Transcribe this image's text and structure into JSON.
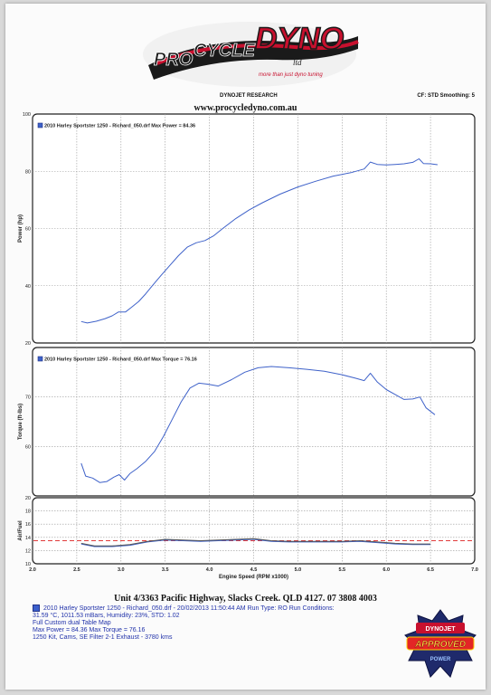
{
  "header": {
    "brand": "DYNOJET RESEARCH",
    "settings": "CF: STD  Smoothing: 5",
    "url": "www.procycledyno.com.au"
  },
  "logo": {
    "text_pro": "PRO",
    "text_cycle": "CYCLE",
    "text_dyno": "DYNO",
    "text_ltd": "ltd",
    "tagline": "more than just dyno tuning"
  },
  "chart_data": [
    {
      "type": "line",
      "title": "2010 Harley Sportster 1250 - Richard_050.drf Max Power = 84.36",
      "ylabel": "Power (hp)",
      "xlabel": "",
      "xlim": [
        2.0,
        7.0
      ],
      "ylim": [
        20,
        100
      ],
      "yticks": [
        20,
        40,
        60,
        80,
        100
      ],
      "xticks": [
        2.0,
        2.5,
        3.0,
        3.5,
        4.0,
        4.5,
        5.0,
        5.5,
        6.0,
        6.5,
        7.0
      ],
      "grid": true,
      "series": [
        {
          "color": "#3f62c9",
          "x": [
            2.55,
            2.62,
            2.72,
            2.82,
            2.9,
            2.97,
            3.05,
            3.12,
            3.2,
            3.28,
            3.36,
            3.45,
            3.55,
            3.65,
            3.75,
            3.85,
            3.95,
            4.05,
            4.15,
            4.3,
            4.45,
            4.6,
            4.8,
            5.0,
            5.2,
            5.4,
            5.6,
            5.75,
            5.82,
            5.9,
            6.0,
            6.1,
            6.2,
            6.3,
            6.37,
            6.42,
            6.5,
            6.58
          ],
          "y": [
            27.5,
            27.0,
            27.6,
            28.5,
            29.5,
            30.8,
            30.8,
            32.5,
            34.5,
            37.2,
            40.2,
            43.5,
            47.0,
            50.5,
            53.5,
            55.0,
            55.8,
            57.5,
            60.0,
            63.5,
            66.5,
            69.0,
            72.0,
            74.5,
            76.5,
            78.3,
            79.5,
            80.8,
            83.2,
            82.4,
            82.2,
            82.4,
            82.6,
            83.1,
            84.36,
            82.7,
            82.6,
            82.3
          ]
        }
      ]
    },
    {
      "type": "line",
      "title": "2010 Harley Sportster 1250 - Richard_050.drf Max Torque = 76.16",
      "ylabel": "Torque (ft-lbs)",
      "xlabel": "",
      "xlim": [
        2.0,
        7.0
      ],
      "ylim": [
        50,
        80
      ],
      "yticks": [
        60,
        70
      ],
      "xticks": [
        2.0,
        2.5,
        3.0,
        3.5,
        4.0,
        4.5,
        5.0,
        5.5,
        6.0,
        6.5,
        7.0
      ],
      "grid": true,
      "series": [
        {
          "color": "#3f62c9",
          "x": [
            2.55,
            2.6,
            2.68,
            2.76,
            2.84,
            2.92,
            2.98,
            3.04,
            3.1,
            3.18,
            3.28,
            3.38,
            3.48,
            3.58,
            3.68,
            3.78,
            3.88,
            3.98,
            4.1,
            4.25,
            4.4,
            4.55,
            4.7,
            4.9,
            5.1,
            5.3,
            5.5,
            5.65,
            5.75,
            5.82,
            5.9,
            6.0,
            6.1,
            6.2,
            6.3,
            6.38,
            6.45,
            6.55
          ],
          "y": [
            56.6,
            54.0,
            53.6,
            52.7,
            52.9,
            53.8,
            54.3,
            53.2,
            54.5,
            55.5,
            57.0,
            59.0,
            62.0,
            65.5,
            69.0,
            71.8,
            72.8,
            72.6,
            72.2,
            73.5,
            75.0,
            75.9,
            76.16,
            75.9,
            75.6,
            75.2,
            74.5,
            73.8,
            73.3,
            74.8,
            73.0,
            71.5,
            70.5,
            69.5,
            69.6,
            70.0,
            67.8,
            66.4
          ]
        }
      ]
    },
    {
      "type": "line",
      "title": "",
      "ylabel": "Air/Fuel",
      "xlabel": "Engine Speed (RPM x1000)",
      "xlim": [
        2.0,
        7.0
      ],
      "ylim": [
        10,
        20
      ],
      "yticks": [
        10,
        12,
        14,
        16,
        18,
        20
      ],
      "xticks": [
        2.0,
        2.5,
        3.0,
        3.5,
        4.0,
        4.5,
        5.0,
        5.5,
        6.0,
        6.5,
        7.0
      ],
      "xtick_labels": [
        "2.0",
        "2.5",
        "3.0",
        "3.5",
        "4.0",
        "4.5",
        "5.0",
        "5.5",
        "6.0",
        "6.5",
        "7.0"
      ],
      "grid": true,
      "reference_line": {
        "y": 13.5,
        "color": "#e03a3a",
        "style": "dashed"
      },
      "series": [
        {
          "color": "#3f62c9",
          "x": [
            2.55,
            2.7,
            2.9,
            3.1,
            3.3,
            3.5,
            3.7,
            3.9,
            4.1,
            4.3,
            4.5,
            4.7,
            4.9,
            5.1,
            5.3,
            5.5,
            5.7,
            5.9,
            6.1,
            6.3,
            6.5
          ],
          "y": [
            13.0,
            12.6,
            12.6,
            12.8,
            13.3,
            13.6,
            13.5,
            13.4,
            13.5,
            13.6,
            13.7,
            13.4,
            13.3,
            13.3,
            13.3,
            13.3,
            13.4,
            13.2,
            13.0,
            12.9,
            12.9
          ]
        },
        {
          "color": "#555555",
          "x": [
            2.55,
            2.7,
            2.9,
            3.1,
            3.3,
            3.5,
            3.7,
            3.9,
            4.1,
            4.3,
            4.5,
            4.7,
            4.9,
            5.1,
            5.3,
            5.5,
            5.7,
            5.9,
            6.1,
            6.3,
            6.5
          ],
          "y": [
            13.1,
            12.7,
            12.7,
            12.9,
            13.4,
            13.7,
            13.6,
            13.5,
            13.6,
            13.7,
            13.8,
            13.5,
            13.4,
            13.4,
            13.4,
            13.4,
            13.5,
            13.3,
            13.1,
            13.0,
            13.0
          ]
        }
      ]
    }
  ],
  "footer": {
    "address": "Unit 4/3363 Pacific Highway, Slacks Creek. QLD 4127. 07 3808 4003",
    "run_line": "2010 Harley Sportster 1250 - Richard_050.drf - 20/02/2013 11:50:44 AM  Run Type: RO  Run Conditions:",
    "conditions": "31.59 °C, 1011.53 mBars,  Humidity:  23%, STD: 1.02",
    "map": "Full Custom dual Table Map",
    "max_values": "Max Power = 84.36  Max Torque = 76.16",
    "mods": "1250 Kit, Cams, SE Filter 2-1 Exhaust - 3780 kms"
  },
  "badge": {
    "top": "DYNOJET",
    "word": "APPROVED",
    "bottom": "POWER"
  },
  "colors": {
    "curve": "#3f62c9",
    "target_afr": "#e03a3a",
    "logo_red": "#c8102e",
    "logo_dark": "#1a1a1a"
  }
}
